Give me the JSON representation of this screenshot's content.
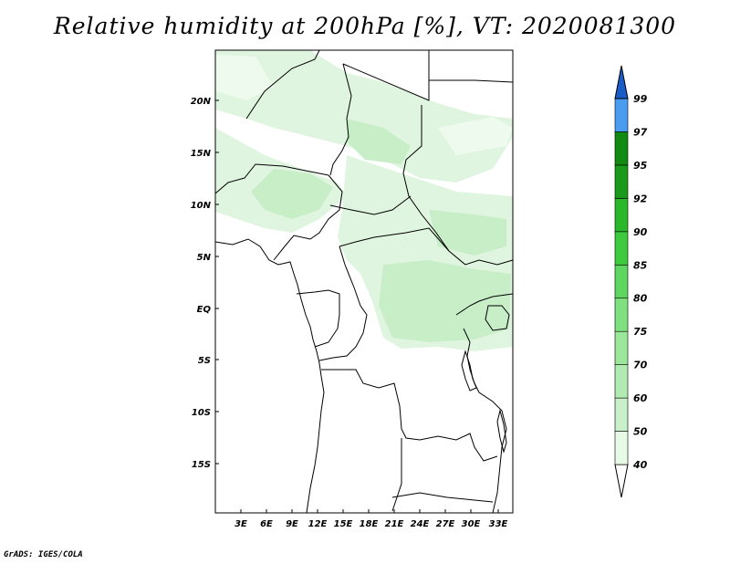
{
  "title": "Relative humidity at 200hPa [%], VT: 2020081300",
  "credit": "GrADS: IGES/COLA",
  "map": {
    "lat_labels": [
      "20N",
      "15N",
      "10N",
      "5N",
      "EQ",
      "5S",
      "10S",
      "15S"
    ],
    "lon_labels": [
      "3E",
      "6E",
      "9E",
      "12E",
      "15E",
      "18E",
      "21E",
      "24E",
      "27E",
      "30E",
      "33E"
    ]
  },
  "colorbar": {
    "levels": [
      "40",
      "50",
      "60",
      "70",
      "75",
      "80",
      "85",
      "90",
      "92",
      "95",
      "97",
      "99"
    ],
    "colors": [
      "#ffffff",
      "#e6fae6",
      "#c9f0c9",
      "#b2ebb2",
      "#9ae69a",
      "#7ee07e",
      "#5fd65f",
      "#3fc93f",
      "#2ab82a",
      "#1a9a1a",
      "#118a11",
      "#4a9cf0",
      "#2470e0",
      "#1a5cc8"
    ]
  }
}
